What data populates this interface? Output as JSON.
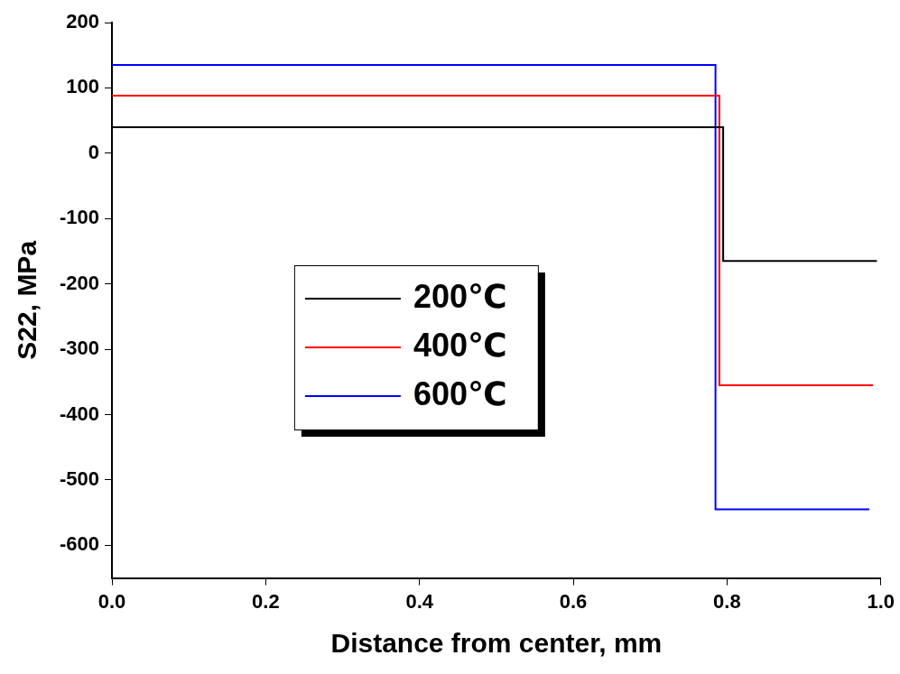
{
  "chart_data": {
    "type": "line",
    "x_label": "Distance from center, mm",
    "y_label": "S22, MPa",
    "series": [
      {
        "name": "200℃",
        "color": "#000000",
        "x": [
          0,
          0.795,
          0.795,
          0.995
        ],
        "values": [
          40,
          40,
          -165,
          -165
        ]
      },
      {
        "name": "400℃",
        "color": "#ff0000",
        "x": [
          0,
          0.79,
          0.79,
          0.99
        ],
        "values": [
          88,
          88,
          -355,
          -355
        ]
      },
      {
        "name": "600℃",
        "color": "#0000ff",
        "x": [
          0,
          0.785,
          0.785,
          0.985
        ],
        "values": [
          135,
          135,
          -545,
          -545
        ]
      }
    ],
    "xlim": [
      0,
      1
    ],
    "xticks": [
      {
        "value": 0,
        "label": "0.0"
      },
      {
        "value": 0.2,
        "label": "0.2"
      },
      {
        "value": 0.4,
        "label": "0.4"
      },
      {
        "value": 0.6,
        "label": "0.6"
      },
      {
        "value": 0.8,
        "label": "0.8"
      },
      {
        "value": 1,
        "label": "1.0"
      }
    ],
    "ylim": [
      -650,
      200
    ],
    "yticks": [
      -600,
      -500,
      -400,
      -300,
      -200,
      -100,
      0,
      100,
      200
    ],
    "grid": false,
    "legend": "center"
  }
}
